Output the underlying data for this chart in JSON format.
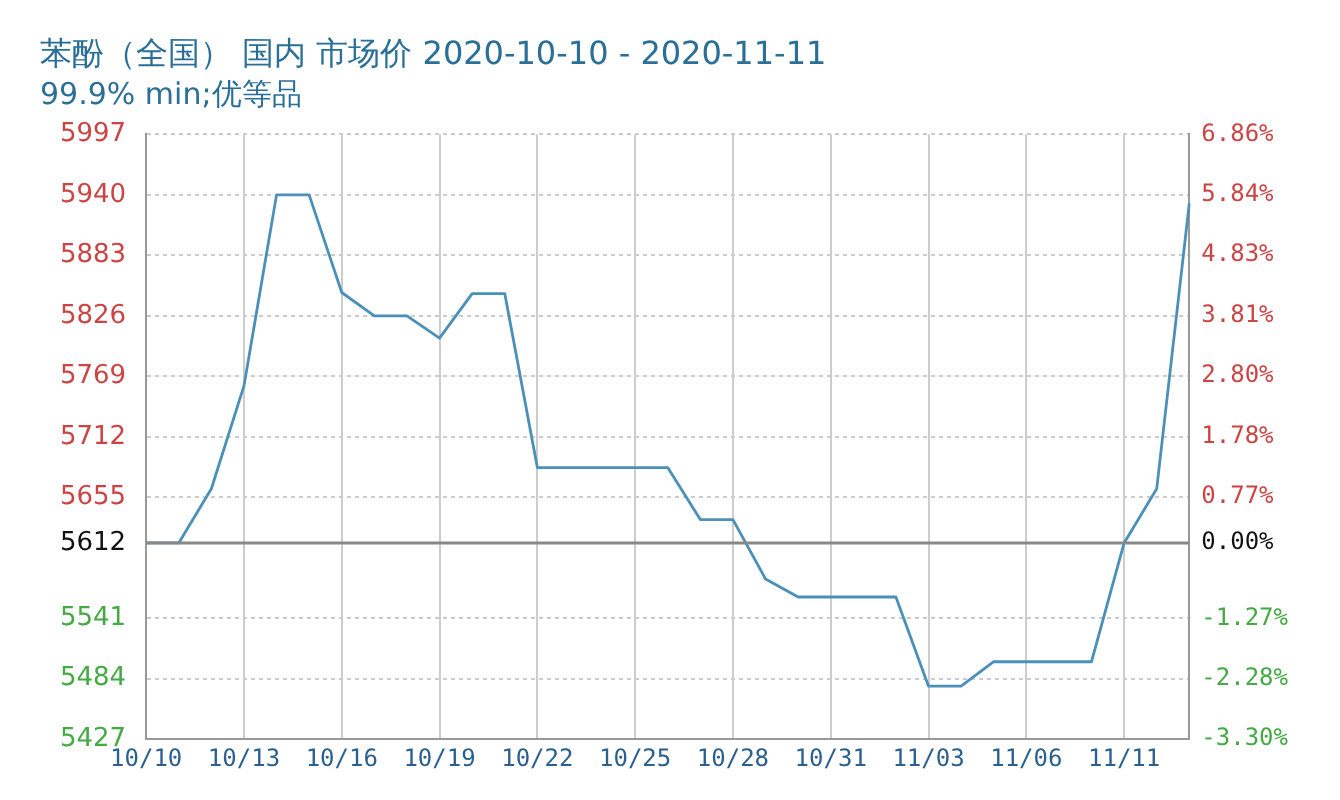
{
  "chart_data": {
    "type": "line",
    "title": "苯酚（全国） 国内 市场价 2020-10-10 - 2020-11-11",
    "subtitle": "99.9% min;优等品",
    "categories": [
      "10/10",
      null,
      null,
      "10/13",
      null,
      null,
      "10/16",
      null,
      null,
      "10/19",
      null,
      null,
      "10/22",
      null,
      null,
      "10/25",
      null,
      null,
      "10/28",
      null,
      null,
      "10/31",
      null,
      null,
      "11/03",
      null,
      null,
      "11/06",
      null,
      null,
      "11/11",
      null,
      null
    ],
    "series": [
      {
        "color": "#4a90b8",
        "values": [
          5612,
          5612,
          5663,
          5760,
          5940,
          5940,
          5848,
          5826,
          5826,
          5805,
          5847,
          5847,
          5683,
          5683,
          5683,
          5683,
          5683,
          5634,
          5634,
          5578,
          5561,
          5561,
          5561,
          5561,
          5477,
          5477,
          5500,
          5500,
          5500,
          5500,
          5612,
          5663,
          5932
        ]
      }
    ],
    "ylim": [
      5427,
      5997
    ],
    "yticks": [
      5427,
      5484,
      5541,
      5612,
      5655,
      5712,
      5769,
      5826,
      5883,
      5940,
      5997
    ],
    "y2lim": [
      -3.3,
      6.86
    ],
    "y2ticks": [
      {
        "value": -3.3,
        "label": "-3.30%"
      },
      {
        "value": -2.28,
        "label": "-2.28%"
      },
      {
        "value": -1.27,
        "label": "-1.27%"
      },
      {
        "value": 0,
        "label": "0.00%"
      },
      {
        "value": 0.77,
        "label": "0.77%"
      },
      {
        "value": 1.78,
        "label": "1.78%"
      },
      {
        "value": 2.8,
        "label": "2.80%"
      },
      {
        "value": 3.81,
        "label": "3.81%"
      },
      {
        "value": 4.83,
        "label": "4.83%"
      },
      {
        "value": 5.84,
        "label": "5.84%"
      },
      {
        "value": 6.86,
        "label": "6.86%"
      }
    ],
    "ref_lines": [
      {
        "axis": "y",
        "value": 5612,
        "color": "#888888"
      }
    ],
    "grid": true,
    "legend": false,
    "marker": "none",
    "line_style": "solid"
  }
}
